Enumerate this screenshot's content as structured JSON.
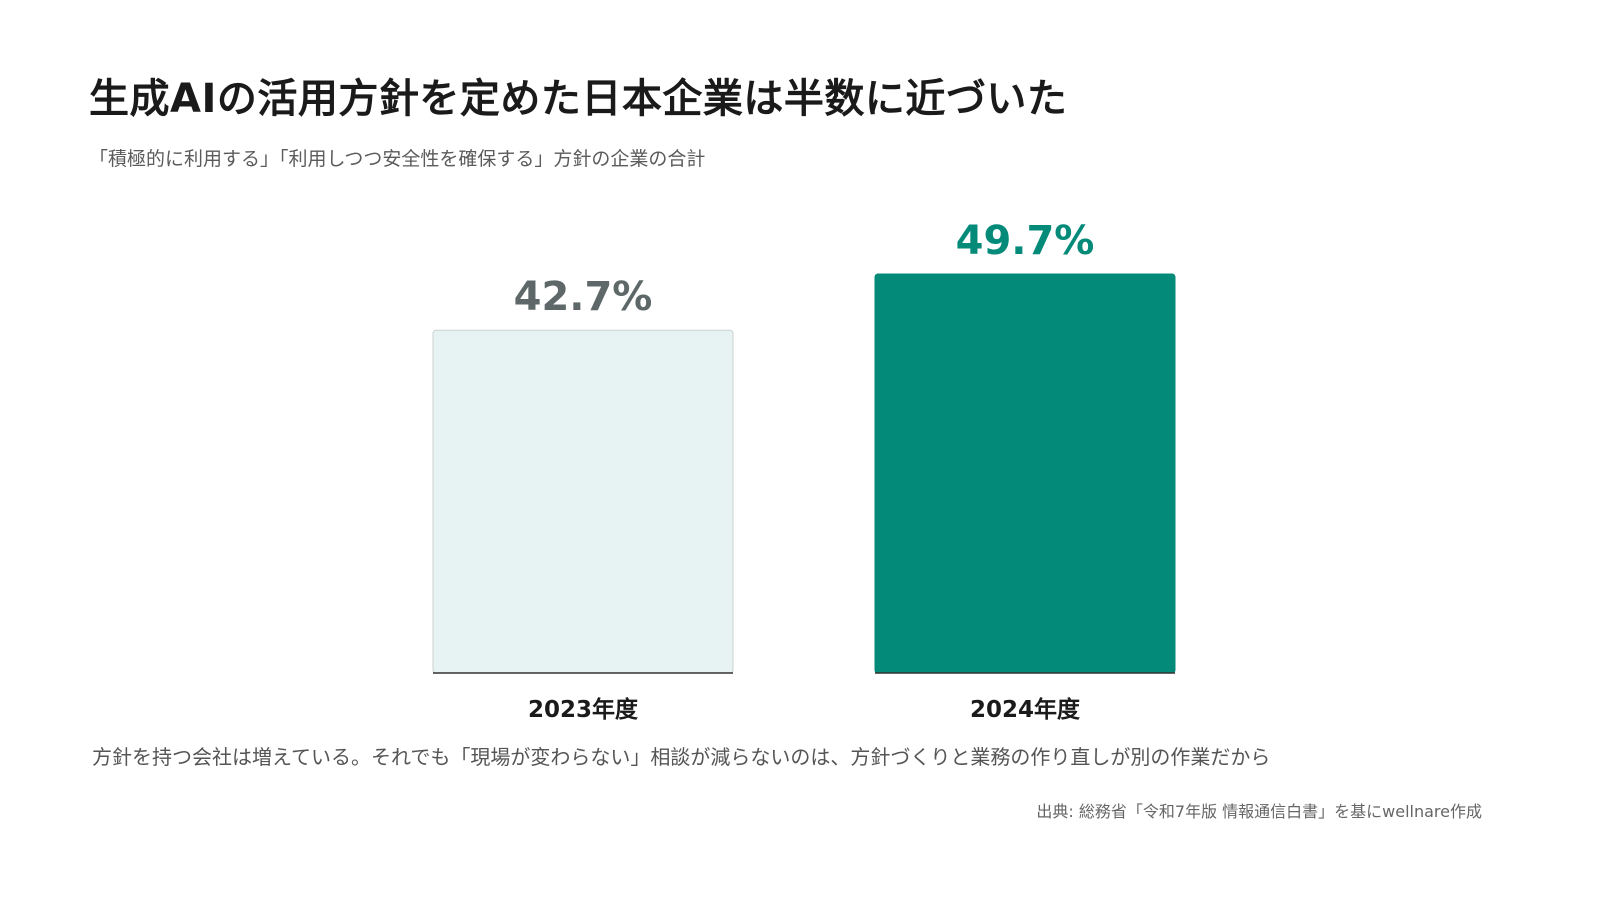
{
  "header": {
    "title": "生成AIの活用方針を定めた日本企業は半数に近づいた",
    "subtitle": "「積極的に利用する」「利用しつつ安全性を確保する」方針の企業の合計"
  },
  "chart_data": {
    "type": "bar",
    "categories": [
      "2023年度",
      "2024年度"
    ],
    "values": [
      42.7,
      49.7
    ],
    "value_labels": [
      "42.7%",
      "49.7%"
    ],
    "title": "",
    "xlabel": "",
    "ylabel": "",
    "ylim": [
      0,
      49.7
    ],
    "grid": false,
    "bar_fill_colors": [
      "#e7f3f2",
      "#048a79"
    ],
    "bar_stroke_colors": [
      "#c9d3d2",
      "#048a79"
    ],
    "value_label_colors": [
      "#5f6869",
      "#048a79"
    ]
  },
  "footer": {
    "note": "方針を持つ会社は増えている。それでも「現場が変わらない」相談が減らないのは、方針づくりと業務の作り直しが別の作業だから",
    "source": "出典: 総務省「令和7年版 情報通信白書」を基にwellnare作成"
  }
}
